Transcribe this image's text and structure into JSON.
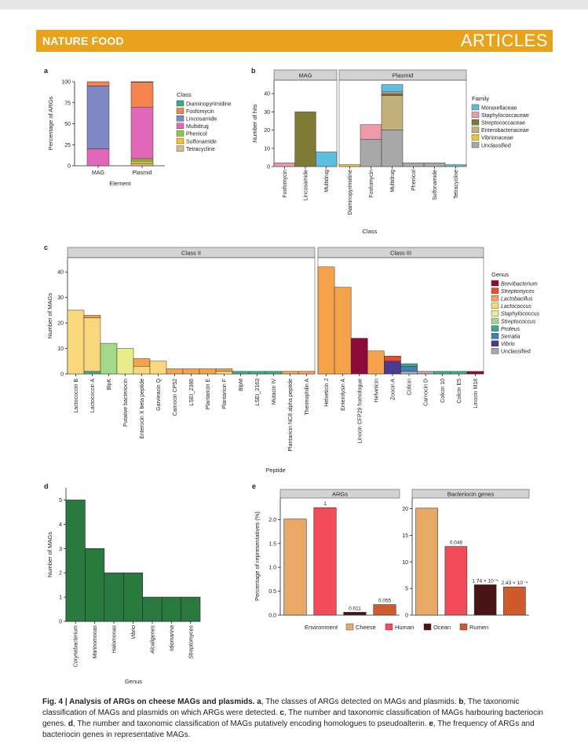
{
  "header": {
    "journal": "NATURE FOOD",
    "section": "ARTICLES"
  },
  "caption": {
    "label": "Fig. 4 | Analysis of ARGs on cheese MAGs and plasmids.",
    "a_letter": "a",
    "a_text": ", The classes of ARGs detected on MAGs and plasmids. ",
    "b_letter": "b",
    "b_text": ", The taxonomic classification of MAGs and plasmids on which ARGs were detected. ",
    "c_letter": "c",
    "c_text": ", The number and taxonomic classification of MAGs harbouring bacteriocin genes. ",
    "d_letter": "d",
    "d_text": ", The number and taxonomic classification of MAGs putatively encoding homologues to pseudoalterin. ",
    "e_letter": "e",
    "e_text": ", The frequency of ARGs and bacteriocin genes in representative MAGs."
  },
  "chart_data": [
    {
      "panel": "a",
      "type": "bar",
      "stacked": true,
      "xlabel": "Element",
      "ylabel": "Percentage of ARGs",
      "ylim": [
        0,
        100
      ],
      "yticks": [
        0,
        25,
        50,
        75,
        100
      ],
      "categories": [
        "MAG",
        "Plasmid"
      ],
      "legend_title": "Class",
      "colors": {
        "Diaminopyrimidine": "#3aab8a",
        "Fosfomycin": "#f5834e",
        "Lincosamide": "#7d88c4",
        "Multidrug": "#e267b8",
        "Phenicol": "#8dc63f",
        "Sulfonamide": "#f4c22b",
        "Tetracycline": "#d9b98c"
      },
      "series": [
        {
          "name": "Diaminopyrimidine",
          "values": [
            0,
            0.6
          ]
        },
        {
          "name": "Fosfomycin",
          "values": [
            5,
            30
          ]
        },
        {
          "name": "Lincosamide",
          "values": [
            75,
            0
          ]
        },
        {
          "name": "Multidrug",
          "values": [
            20,
            61
          ]
        },
        {
          "name": "Phenicol",
          "values": [
            0,
            2.8
          ]
        },
        {
          "name": "Sulfonamide",
          "values": [
            0,
            2.8
          ]
        },
        {
          "name": "Tetracycline",
          "values": [
            0,
            2.8
          ]
        }
      ]
    },
    {
      "panel": "b",
      "type": "bar",
      "stacked": true,
      "xlabel": "Class",
      "ylabel": "Number of hits",
      "ylim": [
        0,
        47
      ],
      "yticks": [
        0,
        10,
        20,
        30,
        40
      ],
      "facets": [
        {
          "label": "MAG",
          "categories": [
            "Fosfomycin",
            "Lincosamide",
            "Multidrug"
          ]
        },
        {
          "label": "Plasmid",
          "categories": [
            "Diaminopyrimidine",
            "Fosfomycin",
            "Multidrug",
            "Phenicol",
            "Sulfonamide",
            "Tetracycline"
          ]
        }
      ],
      "legend_title": "Family",
      "colors": {
        "Moraxellaceae": "#5bbfdd",
        "Staphylococcaceae": "#ee9aa6",
        "Streptococcaceae": "#7c7a35",
        "Enterobacteriaceae": "#c3b17c",
        "Vibrionaceae": "#f4c22b",
        "Unclassified": "#a8a8a8"
      },
      "series": [
        {
          "name": "Unclassified",
          "MAG": [
            0,
            0,
            0
          ],
          "Plasmid": [
            0,
            15,
            20,
            2,
            2,
            0
          ]
        },
        {
          "name": "Vibrionaceae",
          "MAG": [
            0,
            0,
            0
          ],
          "Plasmid": [
            1,
            0,
            0,
            0,
            0,
            0
          ]
        },
        {
          "name": "Enterobacteriaceae",
          "MAG": [
            0,
            0,
            0
          ],
          "Plasmid": [
            0,
            0,
            19,
            0,
            0,
            0
          ]
        },
        {
          "name": "Streptococcaceae",
          "MAG": [
            0,
            30,
            0
          ],
          "Plasmid": [
            0,
            0,
            1,
            0,
            0,
            0
          ]
        },
        {
          "name": "Staphylococcaceae",
          "MAG": [
            2,
            0,
            0
          ],
          "Plasmid": [
            0,
            8,
            1,
            0,
            0,
            0
          ]
        },
        {
          "name": "Moraxellaceae",
          "MAG": [
            0,
            0,
            8
          ],
          "Plasmid": [
            0,
            0,
            4,
            0,
            0,
            1
          ]
        }
      ]
    },
    {
      "panel": "c",
      "type": "bar",
      "stacked": true,
      "xlabel": "Peptide",
      "ylabel": "Number of MAGs",
      "ylim": [
        0,
        45
      ],
      "yticks": [
        0,
        10,
        20,
        30,
        40
      ],
      "facets": [
        {
          "label": "Class II",
          "categories": [
            "Lactococcin B",
            "Lactococcin A",
            "BlpK",
            "Putative bacteriocin",
            "Enterocin X beta peptide",
            "Garvieacin Q",
            "Carnocin CP52",
            "LSEI_2386",
            "Plantaricin E",
            "Plantaricin F",
            "BlpM",
            "LSEI_2163",
            "Mutacin IV",
            "Plantaricin NC8 alpha peptide",
            "Thermophilin A"
          ]
        },
        {
          "label": "Class III",
          "categories": [
            "Helveticin J",
            "Enterolysin A",
            "Linocin CFP29 homologue",
            "Helveticin",
            "Zoocin A",
            "Colicin",
            "Carnocin D",
            "Colicin 10",
            "Colicin E5",
            "Linocin M18"
          ]
        }
      ],
      "legend_title": "Genus",
      "colors": {
        "Brevibacterium": "#8b0a3a",
        "Streptomyces": "#e84c2a",
        "Lactobacillus": "#f6a24a",
        "Lactococcus": "#fad77c",
        "Staphylococcus": "#e9ec8a",
        "Streptococcus": "#a3d98a",
        "Proteus": "#3aab8a",
        "Serratia": "#3f80b8",
        "Vibrio": "#4b3a8f",
        "Unclassified": "#a8a8a8"
      },
      "series": [
        {
          "name": "Unclassified",
          "Class II": [
            0,
            0,
            0,
            0,
            0,
            0,
            0,
            0,
            0,
            0,
            0,
            0,
            0,
            0,
            0
          ],
          "Class III": [
            0,
            0,
            0,
            0,
            0,
            1,
            1,
            0,
            0,
            0
          ]
        },
        {
          "name": "Vibrio",
          "Class II": [
            0,
            0,
            0,
            0,
            0,
            0,
            0,
            0,
            0,
            0,
            0,
            0,
            0,
            0,
            0
          ],
          "Class III": [
            0,
            0,
            0,
            0,
            5,
            0,
            0,
            0,
            0,
            0
          ]
        },
        {
          "name": "Serratia",
          "Class II": [
            0,
            0,
            0,
            0,
            0,
            0,
            0,
            0,
            0,
            0,
            0,
            0,
            0,
            0,
            0
          ],
          "Class III": [
            0,
            0,
            0,
            0,
            0,
            2,
            0,
            0,
            0,
            0
          ]
        },
        {
          "name": "Proteus",
          "Class II": [
            0,
            1,
            0,
            0,
            0,
            0,
            0,
            0,
            0,
            0,
            1,
            1,
            1,
            0,
            0
          ],
          "Class III": [
            0,
            0,
            0,
            0,
            0,
            1,
            0,
            1,
            1,
            0
          ]
        },
        {
          "name": "Streptococcus",
          "Class II": [
            0,
            0,
            12,
            0,
            0,
            0,
            0,
            0,
            0,
            0,
            0,
            0,
            0,
            0,
            0
          ],
          "Class III": [
            0,
            0,
            0,
            0,
            0,
            0,
            0,
            0,
            0,
            0
          ]
        },
        {
          "name": "Staphylococcus",
          "Class II": [
            0,
            0,
            0,
            10,
            0,
            0,
            0,
            0,
            0,
            0,
            0,
            0,
            0,
            0,
            0
          ],
          "Class III": [
            0,
            0,
            0,
            0,
            0,
            0,
            0,
            0,
            0,
            0
          ]
        },
        {
          "name": "Lactococcus",
          "Class II": [
            25,
            21,
            0,
            0,
            3,
            5,
            0,
            0,
            0,
            1,
            0,
            0,
            0,
            0,
            0
          ],
          "Class III": [
            0,
            0,
            0,
            0,
            0,
            0,
            0,
            0,
            0,
            0
          ]
        },
        {
          "name": "Lactobacillus",
          "Class II": [
            0,
            1,
            0,
            0,
            3,
            0,
            2,
            2,
            2,
            1,
            0,
            0,
            0,
            1,
            1
          ],
          "Class III": [
            42,
            34,
            0,
            9,
            0,
            0,
            0,
            0,
            0,
            0
          ]
        },
        {
          "name": "Streptomyces",
          "Class II": [
            0,
            0,
            0,
            0,
            0,
            0,
            0,
            0,
            0,
            0,
            0,
            0,
            0,
            0,
            0
          ],
          "Class III": [
            0,
            0,
            0,
            0,
            2,
            0,
            0,
            0,
            0,
            0
          ]
        },
        {
          "name": "Brevibacterium",
          "Class II": [
            0,
            0,
            0,
            0,
            0,
            0,
            0,
            0,
            0,
            0,
            0,
            0,
            0,
            0,
            0
          ],
          "Class III": [
            0,
            0,
            14,
            0,
            0,
            0,
            0,
            0,
            0,
            1
          ]
        }
      ]
    },
    {
      "panel": "d",
      "type": "bar",
      "xlabel": "Genus",
      "ylabel": "Number of MAGs",
      "ylim": [
        0,
        5.5
      ],
      "yticks": [
        0,
        1,
        2,
        3,
        4,
        5
      ],
      "categories": [
        "Corynebacterium",
        "Marinomonas",
        "Halomonas",
        "Vibrio",
        "Alcaligenes",
        "Idiomarina",
        "Streptomyces"
      ],
      "values": [
        5,
        3,
        2,
        2,
        1,
        1,
        1
      ],
      "color": "#2a7a3f"
    },
    {
      "panel": "e",
      "type": "bar",
      "ylabel": "Percentage of representatives (%)",
      "legend_title": "Environment",
      "categories": [
        "Cheese",
        "Human",
        "Ocean",
        "Rumen"
      ],
      "colors": {
        "Cheese": "#e8a866",
        "Human": "#f24b5a",
        "Ocean": "#4b1414",
        "Rumen": "#cf5a2c"
      },
      "facets": [
        {
          "label": "ARGs",
          "values": [
            2.01,
            2.25,
            0.06,
            0.22
          ],
          "labels": [
            "",
            "1",
            "0.011",
            "0.055"
          ],
          "ylim": [
            0,
            2.45
          ],
          "yticks": [
            0.0,
            0.5,
            1.0,
            1.5,
            2.0
          ],
          "ytick_labels": [
            "0.0",
            "0.5",
            "1.0",
            "1.5",
            "2.0"
          ]
        },
        {
          "label": "Bacteriocin genes",
          "values": [
            20.1,
            12.9,
            5.7,
            5.3
          ],
          "labels": [
            "",
            "0.048",
            "1.74 × 10⁻⁶",
            "2.43 × 10⁻⁴"
          ],
          "ylim": [
            0,
            22
          ],
          "yticks": [
            0,
            5,
            10,
            15,
            20
          ],
          "ytick_labels": [
            "0",
            "5",
            "10",
            "15",
            "20"
          ]
        }
      ]
    }
  ]
}
